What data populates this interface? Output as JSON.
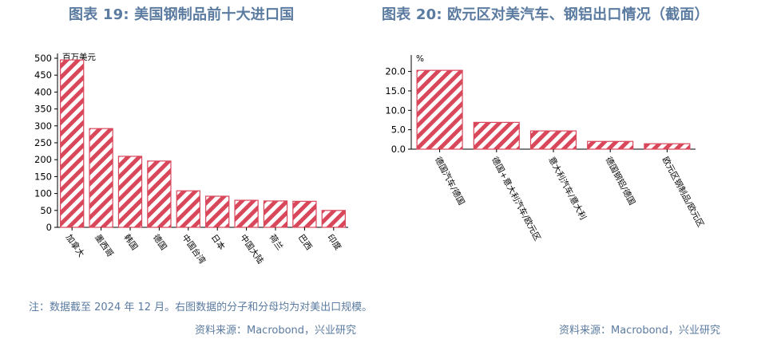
{
  "titles": {
    "left": "图表 19: 美国钢制品前十大进口国",
    "right": "图表 20: 欧元区对美汽车、钢铝出口情况（截面）"
  },
  "note": "注：数据截至 2024 年 12 月。右图数据的分子和分母均为对美出口规模。",
  "sources": {
    "left": "资料来源：Macrobond，兴业研究",
    "right": "资料来源：Macrobond，兴业研究"
  },
  "colors": {
    "bar_stripe": "#d9475b",
    "axis": "#000000",
    "title": "#5b7ba0"
  },
  "chart_data": [
    {
      "type": "bar",
      "unit_label": "百万美元",
      "categories": [
        "加拿大",
        "墨西哥",
        "韩国",
        "德国",
        "中国台湾",
        "日本",
        "中国大陆",
        "荷兰",
        "巴西",
        "印度"
      ],
      "values": [
        495,
        292,
        210,
        196,
        108,
        92,
        80,
        78,
        77,
        50
      ],
      "yticks": [
        0,
        50,
        100,
        150,
        200,
        250,
        300,
        350,
        400,
        450,
        500
      ],
      "ylim": [
        0,
        500
      ],
      "grid": false,
      "legend": "none"
    },
    {
      "type": "bar",
      "unit_label": "%",
      "categories": [
        "德国汽车/德国",
        "德国+意大利汽车/欧元区",
        "意大利汽车/意大利",
        "德国钢铝/德国",
        "欧元区钢制品/欧元区"
      ],
      "values": [
        20.3,
        6.9,
        4.7,
        2.0,
        1.4
      ],
      "yticks": [
        "0.0",
        "5.0",
        "10.0",
        "15.0",
        "20.0"
      ],
      "ylim": [
        0,
        23
      ],
      "grid": false,
      "legend": "none"
    }
  ]
}
